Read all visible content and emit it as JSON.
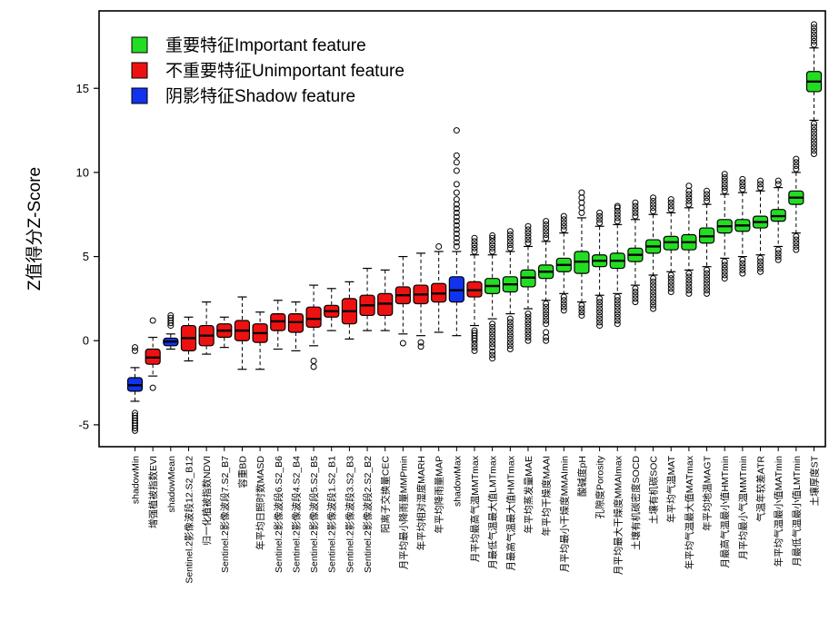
{
  "chart_data": {
    "type": "boxplot",
    "title": "",
    "xlabel": "",
    "ylabel": "Z值得分Z-Score",
    "ylim": [
      -6.3,
      19.6
    ],
    "yticks": [
      -5,
      0,
      5,
      10,
      15
    ],
    "legend": {
      "placement": "top-left",
      "items": [
        {
          "label": "重要特征Important feature",
          "color": "#22dd22"
        },
        {
          "label": "不重要特征Unimportant feature",
          "color": "#ee1111"
        },
        {
          "label": "阴影特征Shadow feature",
          "color": "#1133ee"
        }
      ]
    },
    "category_colors": {
      "shadow": "#1133ee",
      "unimportant": "#ee1111",
      "important": "#22dd22"
    },
    "categories": [
      "shadowMin",
      "增强植被指数EVI",
      "shadowMean",
      "Sentinel.2影像波段12.S2_B12",
      "归一化植被指数NDVI",
      "Sentinel.2影像波段7.S2_B7",
      "容重BD",
      "年平均日照时数MASD",
      "Sentinel.2影像波段6.S2_B6",
      "Sentinel.2影像波段4.S2_B4",
      "Sentinel.2影像波段5.S2_B5",
      "Sentinel.2影像波段1.S2_B1",
      "Sentinel.2影像波段3.S2_B3",
      "Sentinel.2影像波段2.S2_B2",
      "阳离子交换量CEC",
      "月平均最小降雨量MMPmin",
      "年平均相对湿度MARH",
      "年平均降雨量MAP",
      "shadowMax",
      "月平均最高气温MMTmax",
      "月最低气温最大值LMTmax",
      "月最高气温最大值HMTmax",
      "年平均蒸发量MAE",
      "年平均干燥度MAAI",
      "月平均最小干燥度MMAImin",
      "酸碱度pH",
      "孔隙度Porosity",
      "月平均最大干燥度MMAImax",
      "土壤有机碳密度SOCD",
      "土壤有机碳SOC",
      "年平均气温MAT",
      "年平均气温最大值MATmax",
      "年平均地温MAGT",
      "月最高气温最小值HMTmin",
      "月平均最小气温MMTmin",
      "气温年较差ATR",
      "年平均气温最小值MATmin",
      "月最低气温最小值LMTmin",
      "土壤厚度ST"
    ],
    "series": [
      {
        "values": [
          {
            "cat": "shadow",
            "q1": -3.0,
            "med": -2.65,
            "q3": -2.2,
            "wlo": -3.6,
            "whi": -1.6,
            "out": [
              -4.3,
              -4.45,
              -4.6,
              -4.75,
              -4.9,
              -5.05,
              -5.2,
              -5.35,
              -0.4,
              -0.6
            ]
          },
          {
            "cat": "unimportant",
            "q1": -1.4,
            "med": -1.0,
            "q3": -0.5,
            "wlo": -2.1,
            "whi": 0.2,
            "out": [
              -2.8,
              1.2
            ]
          },
          {
            "cat": "shadow",
            "q1": -0.3,
            "med": -0.05,
            "q3": 0.15,
            "wlo": -0.5,
            "whi": 0.4,
            "out": [
              0.9,
              1.05,
              1.2,
              1.35,
              1.5
            ]
          },
          {
            "cat": "unimportant",
            "q1": -0.6,
            "med": 0.15,
            "q3": 0.9,
            "wlo": -1.2,
            "whi": 1.4,
            "out": []
          },
          {
            "cat": "unimportant",
            "q1": -0.3,
            "med": 0.3,
            "q3": 0.9,
            "wlo": -0.8,
            "whi": 2.3,
            "out": []
          },
          {
            "cat": "unimportant",
            "q1": 0.2,
            "med": 0.6,
            "q3": 1.0,
            "wlo": -0.4,
            "whi": 1.4,
            "out": []
          },
          {
            "cat": "unimportant",
            "q1": 0.0,
            "med": 0.6,
            "q3": 1.2,
            "wlo": -1.7,
            "whi": 2.6,
            "out": []
          },
          {
            "cat": "unimportant",
            "q1": -0.1,
            "med": 0.45,
            "q3": 1.0,
            "wlo": -1.7,
            "whi": 1.7,
            "out": []
          },
          {
            "cat": "unimportant",
            "q1": 0.6,
            "med": 1.15,
            "q3": 1.6,
            "wlo": -0.5,
            "whi": 2.4,
            "out": []
          },
          {
            "cat": "unimportant",
            "q1": 0.5,
            "med": 1.1,
            "q3": 1.6,
            "wlo": -0.6,
            "whi": 2.3,
            "out": []
          },
          {
            "cat": "unimportant",
            "q1": 0.8,
            "med": 1.3,
            "q3": 2.0,
            "wlo": -0.3,
            "whi": 3.3,
            "out": [
              -1.55,
              -1.2
            ]
          },
          {
            "cat": "unimportant",
            "q1": 1.4,
            "med": 1.75,
            "q3": 2.1,
            "wlo": 0.6,
            "whi": 3.1,
            "out": []
          },
          {
            "cat": "unimportant",
            "q1": 1.0,
            "med": 1.75,
            "q3": 2.5,
            "wlo": 0.1,
            "whi": 3.5,
            "out": []
          },
          {
            "cat": "unimportant",
            "q1": 1.5,
            "med": 2.1,
            "q3": 2.7,
            "wlo": 0.6,
            "whi": 4.3,
            "out": []
          },
          {
            "cat": "unimportant",
            "q1": 1.5,
            "med": 2.2,
            "q3": 2.8,
            "wlo": 0.6,
            "whi": 4.2,
            "out": []
          },
          {
            "cat": "unimportant",
            "q1": 2.2,
            "med": 2.7,
            "q3": 3.2,
            "wlo": 0.4,
            "whi": 5.0,
            "out": [
              -0.15
            ]
          },
          {
            "cat": "unimportant",
            "q1": 2.2,
            "med": 2.75,
            "q3": 3.3,
            "wlo": 0.3,
            "whi": 5.2,
            "out": [
              -0.1,
              -0.35
            ]
          },
          {
            "cat": "unimportant",
            "q1": 2.3,
            "med": 2.8,
            "q3": 3.4,
            "wlo": 0.5,
            "whi": 5.3,
            "out": [
              5.6
            ]
          },
          {
            "cat": "shadow",
            "q1": 2.3,
            "med": 3.0,
            "q3": 3.8,
            "wlo": 0.3,
            "whi": 5.3,
            "out": [
              5.6,
              5.85,
              6.1,
              6.35,
              6.6,
              6.85,
              7.1,
              7.35,
              7.6,
              7.85,
              8.1,
              8.4,
              8.8,
              9.3,
              10.1,
              10.6,
              11.0,
              12.5
            ]
          },
          {
            "cat": "unimportant",
            "q1": 2.6,
            "med": 3.0,
            "q3": 3.5,
            "wlo": 0.9,
            "whi": 5.1,
            "out": [
              5.3,
              5.5,
              5.7,
              5.9,
              6.1,
              0.6,
              0.45,
              0.3,
              0.15,
              0.0,
              -0.2,
              -0.4,
              -0.6
            ]
          },
          {
            "cat": "important",
            "q1": 2.8,
            "med": 3.25,
            "q3": 3.7,
            "wlo": 1.3,
            "whi": 5.1,
            "out": [
              5.3,
              5.5,
              5.7,
              5.9,
              6.1,
              6.25,
              1.0,
              0.8,
              0.6,
              0.4,
              0.2,
              0.0,
              -0.2,
              -0.4,
              -0.65,
              -0.85,
              -1.05
            ]
          },
          {
            "cat": "important",
            "q1": 2.9,
            "med": 3.35,
            "q3": 3.8,
            "wlo": 1.6,
            "whi": 5.3,
            "out": [
              5.5,
              5.7,
              5.9,
              6.1,
              6.3,
              6.5,
              1.3,
              1.1,
              0.9,
              0.7,
              0.5,
              0.3,
              0.1,
              -0.1,
              -0.3,
              -0.5
            ]
          },
          {
            "cat": "important",
            "q1": 3.2,
            "med": 3.75,
            "q3": 4.2,
            "wlo": 1.9,
            "whi": 5.6,
            "out": [
              5.8,
              6.0,
              6.2,
              6.4,
              6.6,
              6.8,
              1.6,
              1.4,
              1.2,
              1.0,
              0.8,
              0.6,
              0.4,
              0.2,
              0.0
            ]
          },
          {
            "cat": "important",
            "q1": 3.7,
            "med": 4.1,
            "q3": 4.5,
            "wlo": 2.4,
            "whi": 5.9,
            "out": [
              6.1,
              6.3,
              6.5,
              6.7,
              6.9,
              7.1,
              2.2,
              2.0,
              1.8,
              1.6,
              1.4,
              1.2,
              1.0,
              0.5,
              0.2,
              0.0
            ]
          },
          {
            "cat": "important",
            "q1": 4.1,
            "med": 4.5,
            "q3": 4.9,
            "wlo": 2.8,
            "whi": 6.4,
            "out": [
              6.6,
              6.8,
              7.0,
              7.2,
              7.4,
              2.6,
              2.4,
              2.2,
              2.0,
              1.8
            ]
          },
          {
            "cat": "important",
            "q1": 4.0,
            "med": 4.7,
            "q3": 5.3,
            "wlo": 2.3,
            "whi": 7.3,
            "out": [
              7.6,
              7.9,
              8.2,
              8.5,
              8.8,
              2.1,
              1.9,
              1.7,
              1.5
            ]
          },
          {
            "cat": "important",
            "q1": 4.4,
            "med": 4.75,
            "q3": 5.1,
            "wlo": 2.7,
            "whi": 6.8,
            "out": [
              7.0,
              7.2,
              7.4,
              7.6,
              2.5,
              2.3,
              2.1,
              1.9,
              1.7,
              1.5,
              1.3,
              1.1,
              0.9
            ]
          },
          {
            "cat": "important",
            "q1": 4.3,
            "med": 4.75,
            "q3": 5.2,
            "wlo": 2.8,
            "whi": 6.9,
            "out": [
              7.1,
              7.3,
              7.5,
              7.7,
              7.9,
              8.0,
              2.6,
              2.4,
              2.2,
              2.0,
              1.8,
              1.6,
              1.4,
              1.2,
              1.0
            ]
          },
          {
            "cat": "important",
            "q1": 4.7,
            "med": 5.1,
            "q3": 5.5,
            "wlo": 3.3,
            "whi": 7.2,
            "out": [
              7.4,
              7.6,
              7.8,
              8.0,
              8.2,
              3.1,
              2.9,
              2.7,
              2.5,
              2.3
            ]
          },
          {
            "cat": "important",
            "q1": 5.2,
            "med": 5.6,
            "q3": 6.0,
            "wlo": 3.9,
            "whi": 7.5,
            "out": [
              7.7,
              7.9,
              8.1,
              8.3,
              8.5,
              3.7,
              3.5,
              3.3,
              3.1,
              2.9,
              2.7,
              2.5,
              2.3,
              2.1,
              1.9
            ]
          },
          {
            "cat": "important",
            "q1": 5.4,
            "med": 5.85,
            "q3": 6.2,
            "wlo": 4.1,
            "whi": 7.6,
            "out": [
              7.8,
              8.0,
              8.2,
              8.4,
              3.9,
              3.7,
              3.5,
              3.3,
              3.1,
              2.9
            ]
          },
          {
            "cat": "important",
            "q1": 5.4,
            "med": 5.85,
            "q3": 6.3,
            "wlo": 4.2,
            "whi": 7.9,
            "out": [
              8.1,
              8.3,
              8.5,
              8.7,
              8.9,
              9.2,
              4.0,
              3.8,
              3.6,
              3.4,
              3.2,
              3.0,
              2.8
            ]
          },
          {
            "cat": "important",
            "q1": 5.8,
            "med": 6.2,
            "q3": 6.7,
            "wlo": 4.4,
            "whi": 8.1,
            "out": [
              8.3,
              8.5,
              8.7,
              8.9,
              4.2,
              4.0,
              3.8,
              3.6,
              3.4,
              3.2,
              3.0,
              2.8
            ]
          },
          {
            "cat": "important",
            "q1": 6.4,
            "med": 6.8,
            "q3": 7.2,
            "wlo": 4.9,
            "whi": 8.7,
            "out": [
              8.9,
              9.1,
              9.3,
              9.5,
              9.7,
              9.9,
              4.7,
              4.5,
              4.3,
              4.1,
              3.9,
              3.7
            ]
          },
          {
            "cat": "important",
            "q1": 6.5,
            "med": 6.85,
            "q3": 7.2,
            "wlo": 5.0,
            "whi": 8.8,
            "out": [
              9.0,
              9.2,
              9.4,
              9.6,
              4.8,
              4.6,
              4.4,
              4.2,
              4.0
            ]
          },
          {
            "cat": "important",
            "q1": 6.7,
            "med": 7.05,
            "q3": 7.4,
            "wlo": 5.1,
            "whi": 8.9,
            "out": [
              9.1,
              9.3,
              9.5,
              4.9,
              4.7,
              4.5,
              4.3,
              4.1
            ]
          },
          {
            "cat": "important",
            "q1": 7.1,
            "med": 7.4,
            "q3": 7.8,
            "wlo": 5.6,
            "whi": 9.1,
            "out": [
              9.3,
              9.5,
              5.4,
              5.2,
              5.0,
              4.8
            ]
          },
          {
            "cat": "important",
            "q1": 8.1,
            "med": 8.5,
            "q3": 8.9,
            "wlo": 6.4,
            "whi": 10.0,
            "out": [
              10.2,
              10.4,
              10.6,
              10.8,
              6.2,
              6.0,
              5.8,
              5.6,
              5.4
            ]
          },
          {
            "cat": "important",
            "q1": 14.8,
            "med": 15.4,
            "q3": 16.0,
            "wlo": 13.1,
            "whi": 17.4,
            "out": [
              17.6,
              17.8,
              18.0,
              18.2,
              18.4,
              18.6,
              18.8,
              12.9,
              12.7,
              12.5,
              12.3,
              12.1,
              11.9,
              11.7,
              11.5,
              11.3,
              11.1
            ]
          }
        ]
      }
    ]
  }
}
